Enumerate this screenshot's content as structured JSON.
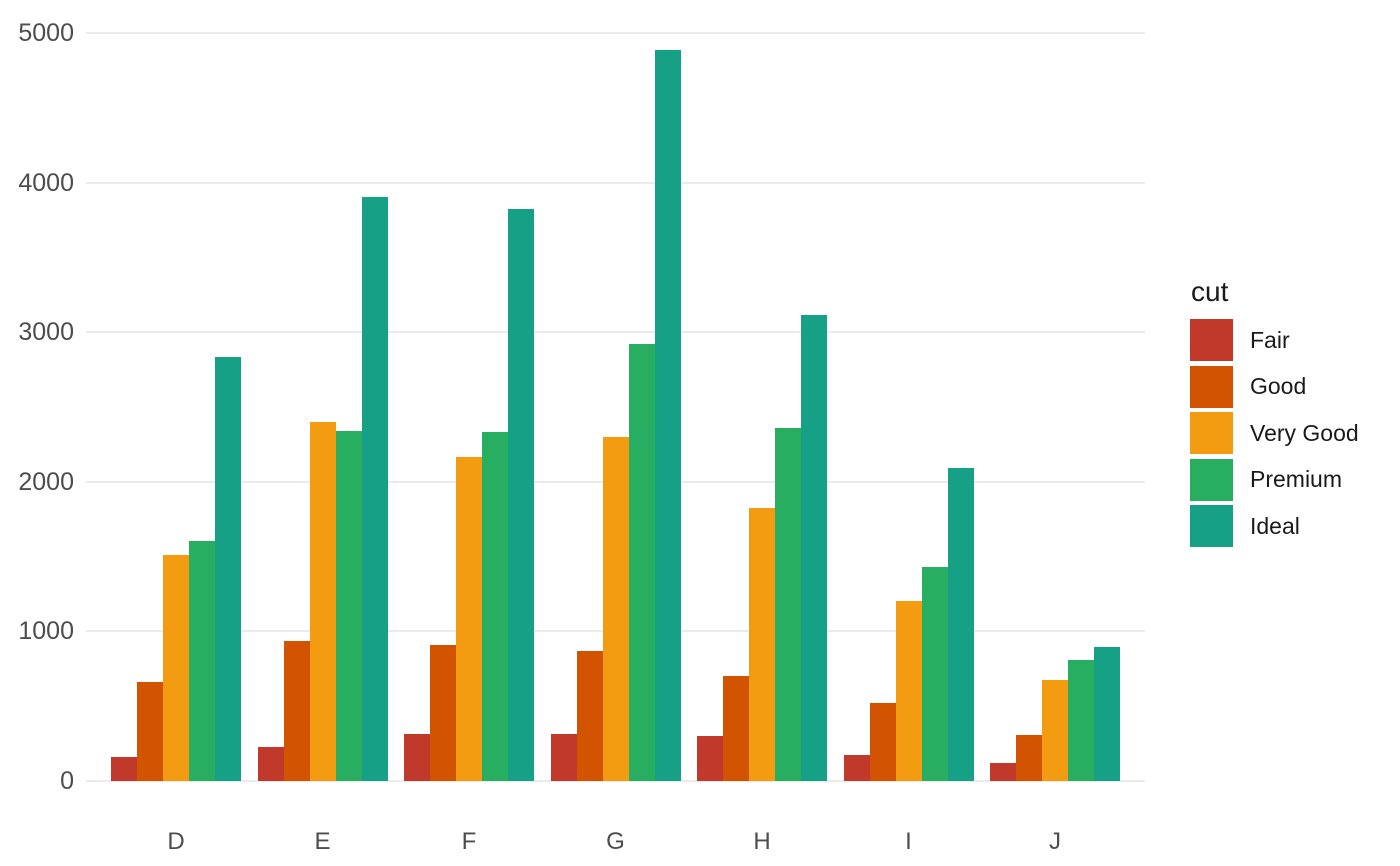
{
  "chart_data": {
    "type": "bar",
    "title": "",
    "xlabel": "",
    "ylabel": "",
    "categories": [
      "D",
      "E",
      "F",
      "G",
      "H",
      "I",
      "J"
    ],
    "series": [
      {
        "name": "Fair",
        "color": "#c0392b",
        "values": [
          163,
          224,
          312,
          314,
          303,
          175,
          119
        ]
      },
      {
        "name": "Good",
        "color": "#d35400",
        "values": [
          662,
          933,
          909,
          871,
          702,
          522,
          307
        ]
      },
      {
        "name": "Very Good",
        "color": "#f39c12",
        "values": [
          1513,
          2400,
          2164,
          2299,
          1824,
          1204,
          678
        ]
      },
      {
        "name": "Premium",
        "color": "#27ae60",
        "values": [
          1603,
          2337,
          2331,
          2924,
          2360,
          1428,
          808
        ]
      },
      {
        "name": "Ideal",
        "color": "#16a085",
        "values": [
          2834,
          3903,
          3826,
          4884,
          3115,
          2093,
          896
        ]
      }
    ],
    "legend_title": "cut",
    "legend_position": "right",
    "ylim": [
      0,
      5000
    ],
    "yticks": [
      0,
      1000,
      2000,
      3000,
      4000,
      5000
    ],
    "grid": "horizontal-major-only",
    "bar_layout": "dodged"
  },
  "style": {
    "background": "#ffffff",
    "grid_color": "#ebebeb",
    "axis_text_color": "#4d4d4d",
    "legend_text_color": "#1a1a1a"
  }
}
